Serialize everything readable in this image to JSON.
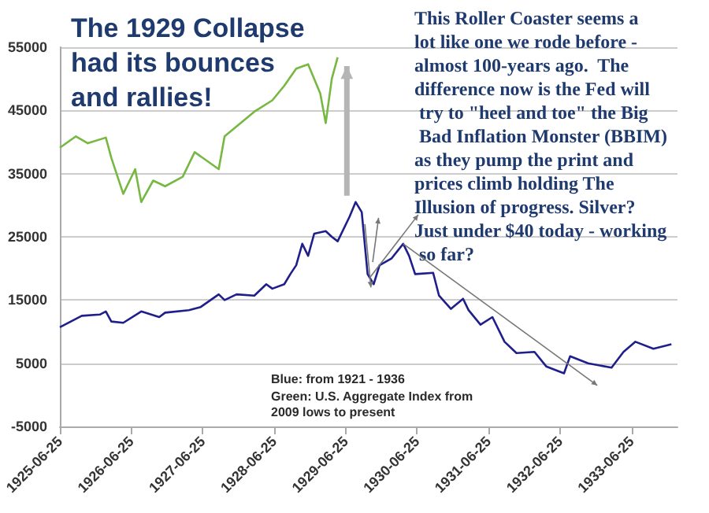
{
  "chart_data": {
    "type": "line",
    "title": "The 1929 Collapse had its bounces and rallies!",
    "annotations": [
      "This Roller Coaster seems a lot like one we rode before - almost 100-years ago.  The difference now is the Fed will try to \"heel and toe\" the Big Bad Inflation Monster (BBIM) as they pump the print and prices climb holding The Illusion of progress. Silver? Just under $40 today - working so far?",
      "Blue: from 1921 - 1936",
      "Green: U.S. Aggregate Index from 2009 lows to present"
    ],
    "series": [
      {
        "color": "#1f1f8c",
        "x": [
          "1925-06-25",
          "1925-10",
          "1926-01",
          "1926-02",
          "1926-03",
          "1926-05",
          "1926-08",
          "1926-11",
          "1926-12",
          "1927-04",
          "1927-06",
          "1927-09",
          "1927-10",
          "1927-12",
          "1928-03",
          "1928-05",
          "1928-06",
          "1928-08",
          "1928-09",
          "1928-10",
          "1928-11",
          "1928-12",
          "1929-01",
          "1929-03",
          "1929-04",
          "1929-05",
          "1929-07",
          "1929-08",
          "1929-09",
          "1929-10",
          "1929-11",
          "1929-12",
          "1930-02",
          "1930-04",
          "1930-05",
          "1930-06",
          "1930-09",
          "1930-10",
          "1930-12",
          "1931-02",
          "1931-03",
          "1931-05",
          "1931-07",
          "1931-09",
          "1931-11",
          "1932-02",
          "1932-04",
          "1932-07",
          "1932-08",
          "1932-11",
          "1933-03",
          "1933-05",
          "1933-07",
          "1933-10",
          "1934-01"
        ],
        "values": [
          10700,
          12500,
          12700,
          13200,
          11600,
          11400,
          13200,
          12300,
          13000,
          13400,
          13900,
          15900,
          15000,
          15900,
          15700,
          17500,
          16800,
          17500,
          19100,
          20500,
          23900,
          22000,
          25500,
          25900,
          25000,
          24300,
          28200,
          30500,
          28900,
          19100,
          17500,
          20500,
          21600,
          23900,
          22000,
          19100,
          19300,
          15700,
          13600,
          15200,
          13400,
          11100,
          12300,
          8400,
          6600,
          6800,
          4500,
          3400,
          6100,
          5000,
          4300,
          6800,
          8400,
          7300,
          8000
        ]
      },
      {
        "color": "#77b843",
        "x": [
          "1925-06-25",
          "1925-09",
          "1925-11",
          "1926-02",
          "1926-03",
          "1926-05",
          "1926-07",
          "1926-08",
          "1926-10",
          "1926-12",
          "1927-03",
          "1927-05",
          "1927-09",
          "1927-10",
          "1928-03",
          "1928-06",
          "1928-08",
          "1928-10",
          "1928-12",
          "1929-02",
          "1929-03",
          "1929-04",
          "1929-05"
        ],
        "values": [
          39100,
          40900,
          39800,
          40700,
          37500,
          31800,
          35700,
          30500,
          33900,
          33000,
          34500,
          38400,
          35700,
          40900,
          44800,
          46600,
          48900,
          51600,
          52300,
          47700,
          43000,
          50000,
          53400
        ]
      }
    ],
    "xlim": [
      "1925-06-25",
      "1934-02-15"
    ],
    "xticks": [
      "1925-06-25",
      "1926-06-25",
      "1927-06-25",
      "1928-06-25",
      "1929-06-25",
      "1930-06-25",
      "1931-06-25",
      "1932-06-25",
      "1933-06-25"
    ],
    "ylim": [
      -5000,
      55000
    ],
    "yticks": [
      -5000,
      5000,
      15000,
      25000,
      35000,
      45000,
      55000
    ],
    "grid": "y",
    "marker": "none",
    "line_style": "solid"
  }
}
